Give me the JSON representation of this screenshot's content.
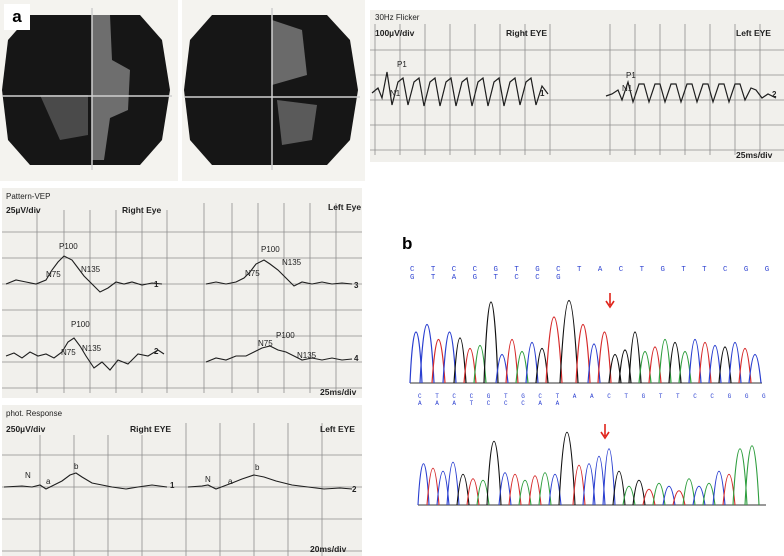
{
  "panel_labels": {
    "a": "a",
    "b": "b"
  },
  "flicker": {
    "title": "30Hz Flicker",
    "scale": "100µV/div",
    "right_label": "Right EYE",
    "left_label": "Left EYE",
    "time_scale": "25ms/div",
    "peak_p": "P1",
    "peak_n": "N1",
    "trace_num_right": "1",
    "trace_num_left": "2"
  },
  "pvep": {
    "title": "Pattern-VEP",
    "scale": "25µV/div",
    "right_label": "Right Eye",
    "left_label": "Left Eye",
    "time_scale": "25ms/div",
    "p100": "P100",
    "n75": "N75",
    "n135": "N135",
    "trace_nums": [
      "1",
      "2",
      "3",
      "4"
    ]
  },
  "phot": {
    "title": "phot. Response",
    "scale": "250µV/div",
    "right_label": "Right EYE",
    "left_label": "Left EYE",
    "time_scale": "20ms/div",
    "n": "N",
    "a": "a",
    "b": "b",
    "trace_num_right": "1",
    "trace_num_left": "2"
  },
  "sequencing": {
    "top_sequence": "C T C C G T G C T A C T G T T C G G G T A G T C C G",
    "bottom_sequence": "C T C C G T G C T A A C T G T T C C G G G A A A T C C C A A",
    "colors": {
      "A": "#2e9e3e",
      "C": "#2a3fd0",
      "G": "#111111",
      "T": "#d62a2a"
    },
    "mutation_arrow_color": "#e0241b"
  },
  "colors": {
    "paper": "#f1f0ec",
    "grid": "#8e8e8e",
    "trace": "#1e1e1e",
    "field_dark": "#161616"
  }
}
